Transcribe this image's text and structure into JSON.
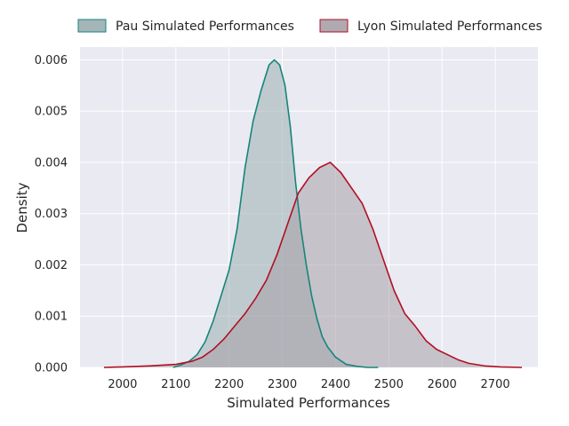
{
  "chart_data": {
    "type": "area",
    "subtype": "kde-density",
    "xlabel": "Simulated Performances",
    "ylabel": "Density",
    "xlim": [
      1920,
      2780
    ],
    "ylim": [
      0,
      0.00625
    ],
    "xticks": [
      2000,
      2100,
      2200,
      2300,
      2400,
      2500,
      2600,
      2700
    ],
    "yticks": [
      0.0,
      0.001,
      0.002,
      0.003,
      0.004,
      0.005,
      0.006
    ],
    "ytick_labels": [
      "0.000",
      "0.001",
      "0.002",
      "0.003",
      "0.004",
      "0.005",
      "0.006"
    ],
    "grid": true,
    "legend_position": "top, above plot, 2 columns",
    "series": [
      {
        "name": "Pau Simulated Performances",
        "color": "#16857a",
        "fill": "#9aaeb3",
        "x": [
          2095,
          2110,
          2125,
          2140,
          2155,
          2170,
          2185,
          2200,
          2215,
          2230,
          2245,
          2260,
          2275,
          2285,
          2295,
          2305,
          2315,
          2325,
          2335,
          2345,
          2355,
          2365,
          2375,
          2385,
          2400,
          2420,
          2440,
          2460,
          2480
        ],
        "y": [
          0.0,
          5e-05,
          0.00012,
          0.00025,
          0.0005,
          0.0009,
          0.0014,
          0.0019,
          0.0027,
          0.0039,
          0.0048,
          0.0054,
          0.0059,
          0.006,
          0.0059,
          0.0055,
          0.0047,
          0.0036,
          0.0027,
          0.002,
          0.0014,
          0.00095,
          0.0006,
          0.0004,
          0.0002,
          6e-05,
          2e-05,
          0.0,
          0.0
        ]
      },
      {
        "name": "Lyon Simulated Performances",
        "color": "#b10f23",
        "fill": "#a7a1a7",
        "x": [
          1965,
          2000,
          2050,
          2100,
          2130,
          2150,
          2170,
          2190,
          2210,
          2230,
          2250,
          2270,
          2290,
          2310,
          2330,
          2350,
          2370,
          2390,
          2410,
          2430,
          2450,
          2470,
          2490,
          2510,
          2530,
          2550,
          2570,
          2590,
          2610,
          2630,
          2650,
          2680,
          2710,
          2750
        ],
        "y": [
          0.0,
          1e-05,
          3e-05,
          6e-05,
          0.00012,
          0.0002,
          0.00035,
          0.00055,
          0.0008,
          0.00105,
          0.00135,
          0.0017,
          0.0022,
          0.0028,
          0.0034,
          0.0037,
          0.0039,
          0.004,
          0.0038,
          0.0035,
          0.0032,
          0.0027,
          0.0021,
          0.0015,
          0.00105,
          0.0008,
          0.00052,
          0.00035,
          0.00025,
          0.00015,
          8e-05,
          3e-05,
          1e-05,
          0.0
        ]
      }
    ],
    "colors": {
      "plot_background": "#eaeaf2",
      "grid": "#ffffff",
      "overlap_fill": "#7e908c"
    }
  }
}
